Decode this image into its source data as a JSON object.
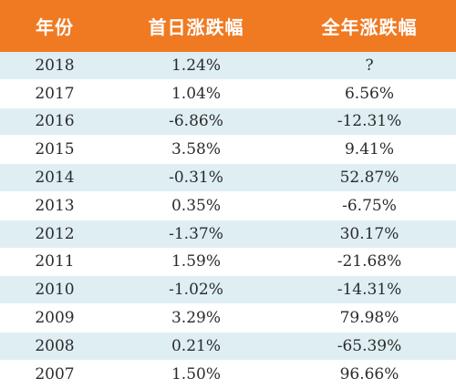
{
  "table": {
    "headers": [
      "年份",
      "首日涨跌幅",
      "全年涨跌幅"
    ],
    "rows": [
      [
        "2018",
        "1.24%",
        "?"
      ],
      [
        "2017",
        "1.04%",
        "6.56%"
      ],
      [
        "2016",
        "-6.86%",
        "-12.31%"
      ],
      [
        "2015",
        "3.58%",
        "9.41%"
      ],
      [
        "2014",
        "-0.31%",
        "52.87%"
      ],
      [
        "2013",
        "0.35%",
        "-6.75%"
      ],
      [
        "2012",
        "-1.37%",
        "30.17%"
      ],
      [
        "2011",
        "1.59%",
        "-21.68%"
      ],
      [
        "2010",
        "-1.02%",
        "-14.31%"
      ],
      [
        "2009",
        "3.29%",
        "79.98%"
      ],
      [
        "2008",
        "0.21%",
        "-65.39%"
      ],
      [
        "2007",
        "1.50%",
        "96.66%"
      ]
    ]
  },
  "colors": {
    "header_bg": "#f07a22",
    "stripe": "#dfeef2",
    "text": "#2b2b2b"
  }
}
